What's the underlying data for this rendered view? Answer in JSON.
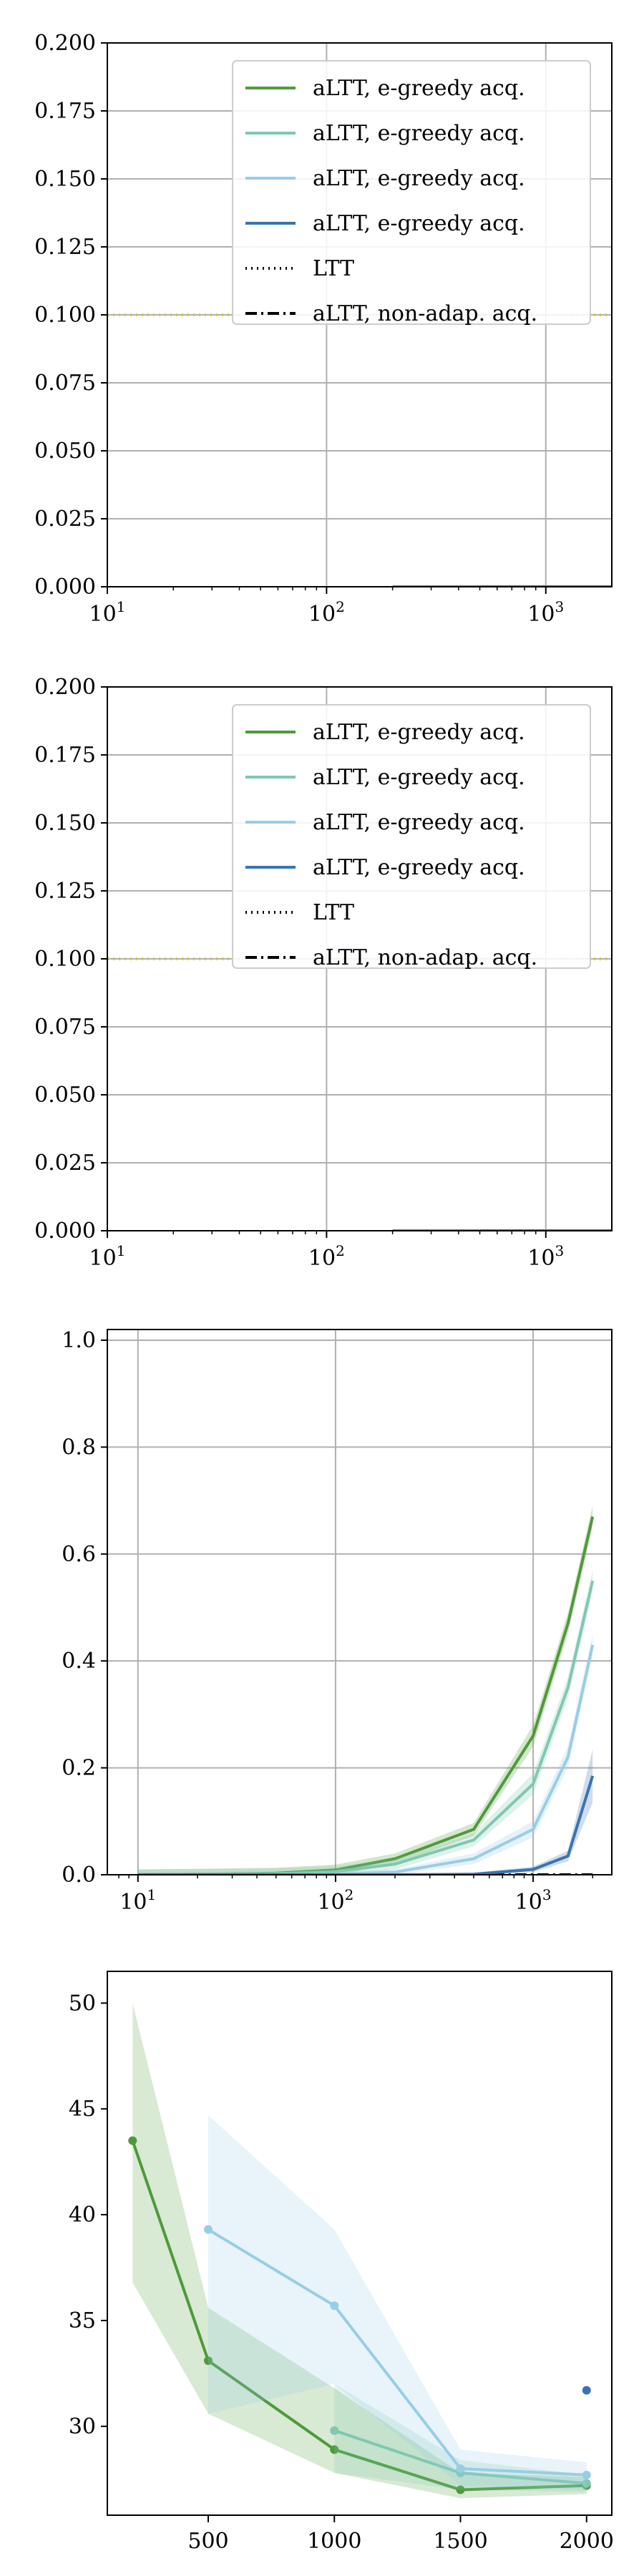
{
  "colors": {
    "green": "#4e9a3a",
    "teal": "#7ec8b0",
    "lightblue": "#98cde6",
    "blue": "#3a74b0",
    "yellow": "#d8c34a",
    "grid": "#b0b0b0"
  },
  "chart_data": [
    {
      "type": "line",
      "xscale": "log",
      "xlim": [
        10,
        2000
      ],
      "ylim": [
        0,
        0.2
      ],
      "yticks": [
        "0.000",
        "0.025",
        "0.050",
        "0.075",
        "0.100",
        "0.125",
        "0.150",
        "0.175",
        "0.200"
      ],
      "xticks": [
        {
          "base": "10",
          "exp": "1"
        },
        {
          "base": "10",
          "exp": "2"
        },
        {
          "base": "10",
          "exp": "3"
        }
      ],
      "grid": true,
      "legend_position": "top-right",
      "legend": [
        {
          "label": "aLTT, e-greedy acq.",
          "color": "#4e9a3a",
          "style": "solid"
        },
        {
          "label": "aLTT, e-greedy acq.",
          "color": "#7ec8b0",
          "style": "solid"
        },
        {
          "label": "aLTT, e-greedy acq.",
          "color": "#98cde6",
          "style": "solid"
        },
        {
          "label": "aLTT, e-greedy acq.",
          "color": "#3a74b0",
          "style": "solid"
        },
        {
          "label": "LTT",
          "color": "#000000",
          "style": "dotted"
        },
        {
          "label": "aLTT, non-adap. acq.",
          "color": "#000000",
          "style": "dashdot"
        }
      ],
      "series": [
        {
          "color": "#d8c34a",
          "style": "dotted",
          "x": [
            10,
            2000
          ],
          "y": [
            0.1,
            0.1
          ]
        },
        {
          "color": "#4e9a3a",
          "style": "solid",
          "x": [
            200,
            500
          ],
          "y": [
            0,
            0
          ]
        },
        {
          "color": "#3a74b0",
          "style": "solid",
          "x": [
            500,
            2000
          ],
          "y": [
            0,
            0
          ]
        }
      ]
    },
    {
      "type": "line",
      "xscale": "log",
      "xlim": [
        10,
        2000
      ],
      "ylim": [
        0,
        0.2
      ],
      "yticks": [
        "0.000",
        "0.025",
        "0.050",
        "0.075",
        "0.100",
        "0.125",
        "0.150",
        "0.175",
        "0.200"
      ],
      "xticks": [
        {
          "base": "10",
          "exp": "1"
        },
        {
          "base": "10",
          "exp": "2"
        },
        {
          "base": "10",
          "exp": "3"
        }
      ],
      "grid": true,
      "legend_position": "top-right",
      "legend": [
        {
          "label": "aLTT, e-greedy acq.",
          "color": "#4e9a3a",
          "style": "solid"
        },
        {
          "label": "aLTT, e-greedy acq.",
          "color": "#7ec8b0",
          "style": "solid"
        },
        {
          "label": "aLTT, e-greedy acq.",
          "color": "#98cde6",
          "style": "solid"
        },
        {
          "label": "aLTT, e-greedy acq.",
          "color": "#3a74b0",
          "style": "solid"
        },
        {
          "label": "LTT",
          "color": "#000000",
          "style": "dotted"
        },
        {
          "label": "aLTT, non-adap. acq.",
          "color": "#000000",
          "style": "dashdot"
        }
      ],
      "series": [
        {
          "color": "#d8c34a",
          "style": "dotted",
          "x": [
            10,
            2000
          ],
          "y": [
            0.1,
            0.1
          ]
        },
        {
          "color": "#4e9a3a",
          "style": "solid",
          "x": [
            200,
            500
          ],
          "y": [
            0,
            0
          ]
        },
        {
          "color": "#3a74b0",
          "style": "solid",
          "x": [
            500,
            2000
          ],
          "y": [
            0,
            0
          ]
        }
      ]
    },
    {
      "type": "line",
      "xscale": "log",
      "xlim": [
        7,
        2500
      ],
      "ylim": [
        0,
        1.02
      ],
      "yticks": [
        "0.0",
        "0.2",
        "0.4",
        "0.6",
        "0.8",
        "1.0"
      ],
      "xticks": [
        {
          "base": "10",
          "exp": "1"
        },
        {
          "base": "10",
          "exp": "2"
        },
        {
          "base": "10",
          "exp": "3"
        }
      ],
      "grid": true,
      "series": [
        {
          "color": "#000000",
          "style": "dashdot",
          "x": [
            10,
            2000
          ],
          "y": [
            0,
            0
          ]
        },
        {
          "color": "#4e9a3a",
          "style": "solid",
          "x": [
            10,
            20,
            50,
            100,
            200,
            500,
            1000,
            1500,
            2000
          ],
          "y": [
            0.0,
            0.001,
            0.003,
            0.009,
            0.03,
            0.085,
            0.26,
            0.47,
            0.67
          ],
          "band": [
            0.01,
            0.01,
            0.01,
            0.01,
            0.01,
            0.012,
            0.02,
            0.02,
            0.02
          ]
        },
        {
          "color": "#7ec8b0",
          "style": "solid",
          "x": [
            10,
            20,
            50,
            100,
            200,
            500,
            1000,
            1500,
            2000
          ],
          "y": [
            0.0,
            0.001,
            0.002,
            0.006,
            0.02,
            0.065,
            0.17,
            0.35,
            0.55
          ],
          "band": [
            0.01,
            0.01,
            0.01,
            0.01,
            0.01,
            0.012,
            0.02,
            0.02,
            0.02
          ]
        },
        {
          "color": "#98cde6",
          "style": "solid",
          "x": [
            10,
            50,
            100,
            200,
            500,
            1000,
            1500,
            2000
          ],
          "y": [
            0.0,
            0.0,
            0.001,
            0.005,
            0.03,
            0.085,
            0.22,
            0.43
          ],
          "band": [
            0.005,
            0.005,
            0.005,
            0.005,
            0.01,
            0.015,
            0.02,
            0.02
          ]
        },
        {
          "color": "#3a74b0",
          "style": "solid",
          "x": [
            10,
            100,
            200,
            500,
            1000,
            1500,
            2000
          ],
          "y": [
            0.0,
            0.0,
            0.0,
            0.001,
            0.01,
            0.035,
            0.185
          ],
          "band": [
            0.003,
            0.003,
            0.003,
            0.003,
            0.005,
            0.01,
            0.05
          ]
        }
      ]
    },
    {
      "type": "line",
      "xscale": "linear",
      "xlim": [
        100,
        2100
      ],
      "ylim": [
        25.8,
        51.5
      ],
      "yticks": [
        "30",
        "35",
        "40",
        "45",
        "50"
      ],
      "ytick_values": [
        30,
        35,
        40,
        45,
        50
      ],
      "xticks": [
        "500",
        "1000",
        "1500",
        "2000"
      ],
      "xtick_values": [
        500,
        1000,
        1500,
        2000
      ],
      "grid": false,
      "series": [
        {
          "color": "#4e9a3a",
          "x": [
            200,
            500,
            1000,
            1500,
            2000
          ],
          "y": [
            43.5,
            33.1,
            28.9,
            27.0,
            27.2
          ],
          "lo": [
            36.8,
            30.6,
            27.8,
            26.6,
            26.8
          ],
          "hi": [
            50.0,
            35.6,
            31.8,
            27.8,
            27.6
          ]
        },
        {
          "color": "#7ec8b0",
          "x": [
            1000,
            1500,
            2000
          ],
          "y": [
            29.8,
            27.8,
            27.3
          ],
          "lo": [
            27.8,
            27.0,
            26.9
          ],
          "hi": [
            32.0,
            28.4,
            27.7
          ]
        },
        {
          "color": "#98cde6",
          "x": [
            500,
            1000,
            1500,
            2000
          ],
          "y": [
            39.3,
            35.7,
            28.0,
            27.7
          ],
          "lo": [
            30.6,
            32.0,
            27.2,
            27.0
          ],
          "hi": [
            44.7,
            39.3,
            28.9,
            28.3
          ]
        },
        {
          "color": "#3a74b0",
          "x": [
            2000
          ],
          "y": [
            31.7
          ]
        }
      ]
    }
  ]
}
